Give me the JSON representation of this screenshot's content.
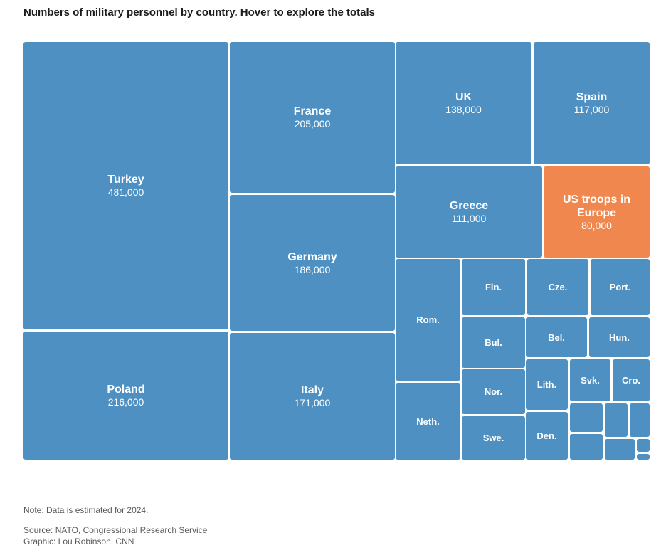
{
  "header": {
    "title": "Numbers of military personnel by country. Hover to explore the totals"
  },
  "footer": {
    "note": "Note: Data is estimated for 2024.",
    "source": "Source: NATO, Congressional Research Service",
    "credit": "Graphic: Lou Robinson, CNN"
  },
  "colors": {
    "default": "#4f90c2",
    "highlight": "#f0874f",
    "text": "#ffffff"
  },
  "chart_data": {
    "type": "treemap",
    "title": "Numbers of military personnel by country. Hover to explore the totals",
    "items": [
      {
        "label": "Turkey",
        "value": 481000,
        "value_label": "481,000"
      },
      {
        "label": "Poland",
        "value": 216000,
        "value_label": "216,000"
      },
      {
        "label": "France",
        "value": 205000,
        "value_label": "205,000"
      },
      {
        "label": "Germany",
        "value": 186000,
        "value_label": "186,000"
      },
      {
        "label": "Italy",
        "value": 171000,
        "value_label": "171,000"
      },
      {
        "label": "UK",
        "value": 138000,
        "value_label": "138,000"
      },
      {
        "label": "Spain",
        "value": 117000,
        "value_label": "117,000"
      },
      {
        "label": "Greece",
        "value": 111000,
        "value_label": "111,000"
      },
      {
        "label": "US troops in Europe",
        "value": 80000,
        "value_label": "80,000",
        "highlight": true
      },
      {
        "label": "Rom."
      },
      {
        "label": "Neth."
      },
      {
        "label": "Fin."
      },
      {
        "label": "Bul."
      },
      {
        "label": "Nor."
      },
      {
        "label": "Swe."
      },
      {
        "label": "Cze."
      },
      {
        "label": "Port."
      },
      {
        "label": "Bel."
      },
      {
        "label": "Hun."
      },
      {
        "label": "Lith."
      },
      {
        "label": "Den."
      },
      {
        "label": "Svk."
      },
      {
        "label": "Cro."
      },
      {
        "label": ""
      },
      {
        "label": ""
      },
      {
        "label": ""
      },
      {
        "label": ""
      },
      {
        "label": ""
      },
      {
        "label": ""
      },
      {
        "label": ""
      }
    ]
  }
}
